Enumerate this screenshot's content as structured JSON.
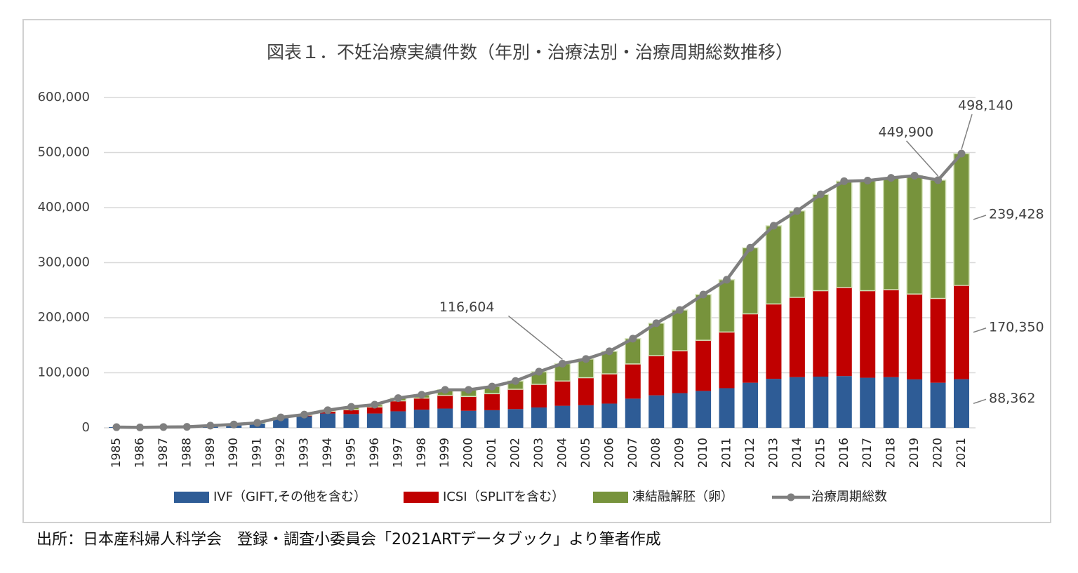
{
  "chart_data": {
    "type": "bar",
    "title": "図表１．不妊治療実績件数（年別・治療法別・治療周期総数推移）",
    "source": "出所：日本産科婦人科学会　登録・調査小委員会「2021ARTデータブック」より筆者作成",
    "categories": [
      "1985",
      "1986",
      "1987",
      "1988",
      "1989",
      "1990",
      "1991",
      "1992",
      "1993",
      "1994",
      "1995",
      "1996",
      "1997",
      "1998",
      "1999",
      "2000",
      "2001",
      "2002",
      "2003",
      "2004",
      "2005",
      "2006",
      "2007",
      "2008",
      "2009",
      "2010",
      "2011",
      "2012",
      "2013",
      "2014",
      "2015",
      "2016",
      "2017",
      "2018",
      "2019",
      "2020",
      "2021"
    ],
    "ylim": [
      0,
      600000
    ],
    "yticks": [
      0,
      {
        "value": 100000,
        "label": "100,000"
      },
      {
        "value": 200000,
        "label": "200,000"
      },
      {
        "value": 300000,
        "label": "300,000"
      },
      {
        "value": 400000,
        "label": "400,000"
      },
      {
        "value": 500000,
        "label": "500,000"
      },
      {
        "value": 600000,
        "label": "600,000"
      }
    ],
    "grid": true,
    "stacked": true,
    "legend": "bottom",
    "series": [
      {
        "name": "IVF（GIFT,その他を含む）",
        "color": "#2e5c96",
        "type": "bar",
        "values": [
          1200,
          800,
          1500,
          1700,
          4000,
          5800,
          8500,
          17500,
          21000,
          26000,
          25000,
          26000,
          30000,
          33000,
          35000,
          31000,
          32000,
          34000,
          37000,
          40000,
          41000,
          44000,
          53000,
          59000,
          63000,
          67000,
          72000,
          82000,
          89000,
          92000,
          93000,
          94000,
          91000,
          92000,
          88000,
          82000,
          88362
        ],
        "value_labels": [
          null,
          null,
          null,
          null,
          null,
          null,
          null,
          null,
          null,
          null,
          null,
          null,
          null,
          null,
          null,
          null,
          null,
          null,
          null,
          null,
          null,
          null,
          null,
          null,
          null,
          null,
          null,
          null,
          null,
          null,
          null,
          null,
          null,
          null,
          null,
          null,
          "88,362"
        ]
      },
      {
        "name": "ICSI（SPLITを含む）",
        "color": "#c00000",
        "type": "bar",
        "values": [
          0,
          0,
          0,
          0,
          0,
          0,
          0,
          1000,
          2000,
          4000,
          8000,
          12000,
          19000,
          21000,
          24000,
          26000,
          30000,
          36000,
          42000,
          45000,
          50000,
          54000,
          63000,
          72000,
          77000,
          92000,
          102000,
          125000,
          136000,
          145000,
          156000,
          161000,
          158000,
          159000,
          155000,
          153000,
          170350
        ],
        "value_labels": [
          null,
          null,
          null,
          null,
          null,
          null,
          null,
          null,
          null,
          null,
          null,
          null,
          null,
          null,
          null,
          null,
          null,
          null,
          null,
          null,
          null,
          null,
          null,
          null,
          null,
          null,
          null,
          null,
          null,
          null,
          null,
          null,
          null,
          null,
          null,
          null,
          "170,350"
        ]
      },
      {
        "name": "凍結融解胚（卵）",
        "color": "#77933c",
        "type": "bar",
        "values": [
          0,
          0,
          0,
          0,
          0,
          200,
          500,
          500,
          1000,
          2000,
          5000,
          4000,
          5000,
          6000,
          10000,
          12000,
          13000,
          15000,
          23000,
          31604,
          34000,
          41000,
          46000,
          59000,
          74000,
          83000,
          95000,
          120000,
          142000,
          157000,
          175000,
          193000,
          200000,
          203000,
          215000,
          214900,
          239428
        ],
        "value_labels": [
          null,
          null,
          null,
          null,
          null,
          null,
          null,
          null,
          null,
          null,
          null,
          null,
          null,
          null,
          null,
          null,
          null,
          null,
          null,
          null,
          null,
          null,
          null,
          null,
          null,
          null,
          null,
          null,
          null,
          null,
          null,
          null,
          null,
          null,
          null,
          null,
          "239,428"
        ]
      },
      {
        "name": "治療周期総数",
        "color": "#7f7f7f",
        "type": "line",
        "values": [
          1200,
          800,
          1500,
          1700,
          4000,
          6000,
          9000,
          19000,
          24000,
          32000,
          38000,
          42000,
          54000,
          60000,
          69000,
          69000,
          75000,
          85000,
          102000,
          116604,
          125000,
          139000,
          162000,
          190000,
          214000,
          242000,
          269000,
          327000,
          367000,
          394000,
          424000,
          448000,
          449000,
          454000,
          458000,
          449900,
          498140
        ],
        "value_labels": [
          null,
          null,
          null,
          null,
          null,
          null,
          null,
          null,
          null,
          null,
          null,
          null,
          null,
          null,
          null,
          null,
          null,
          null,
          null,
          "116,604",
          null,
          null,
          null,
          null,
          null,
          null,
          null,
          null,
          null,
          null,
          null,
          null,
          null,
          null,
          null,
          "449,900",
          "498,140"
        ]
      }
    ]
  }
}
